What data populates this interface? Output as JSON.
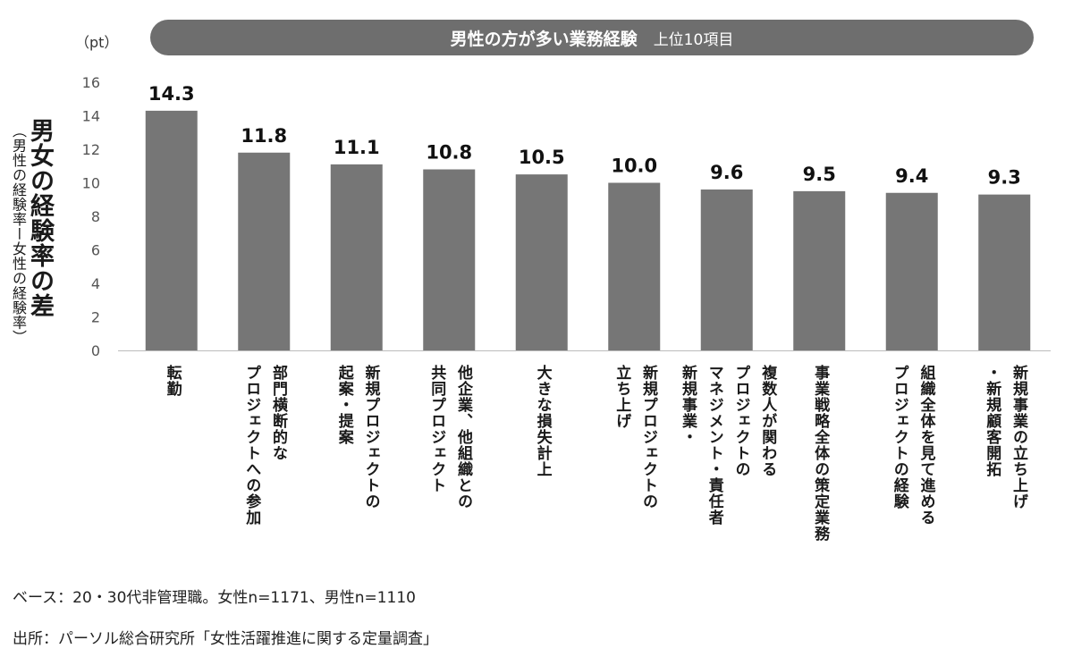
{
  "title": {
    "main": "男性の方が多い業務経験",
    "sub": "上位10項目"
  },
  "unit": "（pt）",
  "ylabel": {
    "main": "男女の経験率の差",
    "sub": "（男性の経験率ー女性の経験率）"
  },
  "chart_data": {
    "type": "bar",
    "title": "男性の方が多い業務経験　上位10項目",
    "ylabel": "男女の経験率の差（男性の経験率ー女性の経験率）",
    "unit": "pt",
    "ylim": [
      0,
      16
    ],
    "yticks": [
      0,
      2,
      4,
      6,
      8,
      10,
      12,
      14,
      16
    ],
    "categories": [
      "転勤",
      "部門横断的な\nプロジェクトへの参加",
      "新規プロジェクトの\n起案・提案",
      "他企業、他組織との\n共同プロジェクト",
      "大きな損失計上",
      "新規プロジェクトの\n立ち上げ",
      "複数人が関わる\nプロジェクトの\nマネジメント・責任者\n新規事業・",
      "事業戦略全体の策定業務",
      "組織全体を見て進める\nプロジェクトの経験",
      "新規事業の立ち上げ\n・新規顧客開拓"
    ],
    "values": [
      14.3,
      11.8,
      11.1,
      10.8,
      10.5,
      10.0,
      9.6,
      9.5,
      9.4,
      9.3
    ],
    "value_labels": [
      "14.3",
      "11.8",
      "11.1",
      "10.8",
      "10.5",
      "10.0",
      "9.6",
      "9.5",
      "9.4",
      "9.3"
    ],
    "bar_color": "#767676",
    "grid": false,
    "legend": "none"
  },
  "footnotes": {
    "base": "ベース：20・30代非管理職。女性n=1171、男性n=1110",
    "source": "出所：パーソル総合研究所「女性活躍推進に関する定量調査」"
  }
}
